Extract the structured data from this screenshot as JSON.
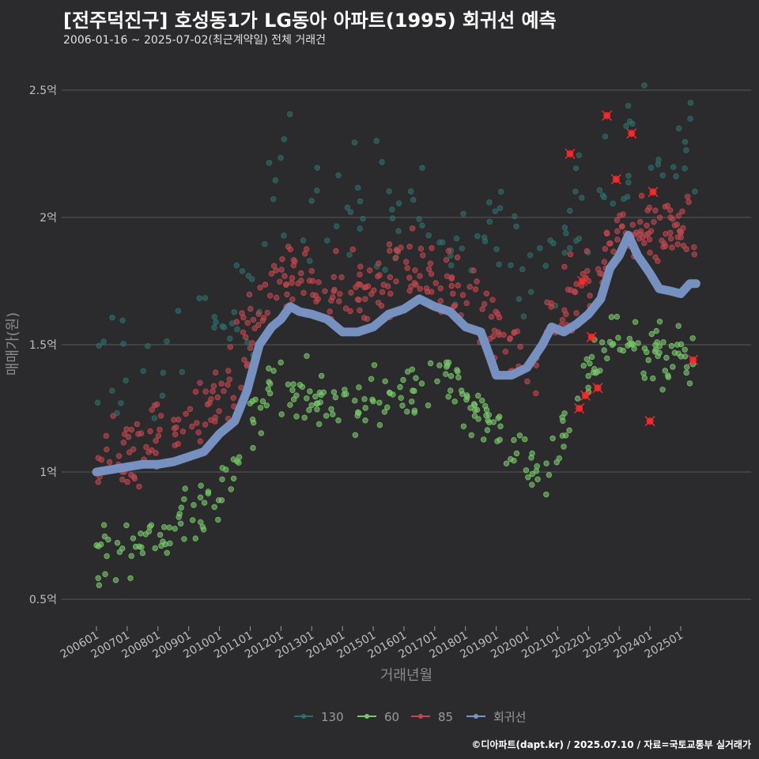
{
  "header": {
    "title": "[전주덕진구] 호성동1가 LG동아 아파트(1995) 회귀선 예측",
    "subtitle": "2006-01-16 ~ 2025-07-02(최근계약일) 전체 거래건"
  },
  "footer": {
    "credit": "©디아파트(dapt.kr) / 2025.07.10 / 자료=국토교통부 실거래가"
  },
  "colors": {
    "background": "#2b2b2e",
    "s130": "#2e6e6c",
    "s60": "#79c86a",
    "s85": "#c0474f",
    "regression": "#7a96c8",
    "highlight": "#ff2a2a",
    "grid": "#5a5a5a"
  },
  "chart_data": {
    "type": "scatter",
    "xlabel": "거래년월",
    "ylabel": "매매가(원)",
    "x_ticks": [
      "200601",
      "200701",
      "200801",
      "200901",
      "201001",
      "201101",
      "201201",
      "201301",
      "201401",
      "201501",
      "201601",
      "201701",
      "201801",
      "201901",
      "202001",
      "202101",
      "202201",
      "202301",
      "202401",
      "202501"
    ],
    "y_ticks": [
      {
        "value": 0.5,
        "label": "0.5억"
      },
      {
        "value": 1.0,
        "label": "1억"
      },
      {
        "value": 1.5,
        "label": "1.5억"
      },
      {
        "value": 2.0,
        "label": "2억"
      },
      {
        "value": 2.5,
        "label": "2.5억"
      }
    ],
    "ylim": [
      0.4,
      2.6
    ],
    "xlim": [
      "2005-10",
      "2025-12"
    ],
    "grid": true,
    "legend_position": "bottom",
    "legend": [
      {
        "name": "130",
        "color": "#2e6e6c"
      },
      {
        "name": "60",
        "color": "#79c86a"
      },
      {
        "name": "85",
        "color": "#c0474f"
      },
      {
        "name": "회귀선",
        "color": "#7a96c8"
      }
    ],
    "series": [
      {
        "name": "130",
        "color": "#2e6e6c",
        "trend": [
          [
            2006.0,
            1.38
          ],
          [
            2008.0,
            1.42
          ],
          [
            2010.0,
            1.5
          ],
          [
            2011.0,
            1.75
          ],
          [
            2012.0,
            2.1
          ],
          [
            2014.0,
            2.0
          ],
          [
            2016.0,
            1.95
          ],
          [
            2018.0,
            1.95
          ],
          [
            2020.0,
            1.85
          ],
          [
            2022.0,
            2.1
          ],
          [
            2023.0,
            2.3
          ],
          [
            2025.5,
            2.25
          ]
        ],
        "spread": 0.14,
        "count": 150
      },
      {
        "name": "60",
        "color": "#79c86a",
        "trend": [
          [
            2006.0,
            0.68
          ],
          [
            2008.0,
            0.75
          ],
          [
            2009.5,
            0.85
          ],
          [
            2010.5,
            1.0
          ],
          [
            2011.0,
            1.2
          ],
          [
            2012.0,
            1.33
          ],
          [
            2014.0,
            1.25
          ],
          [
            2016.0,
            1.32
          ],
          [
            2017.5,
            1.38
          ],
          [
            2019.0,
            1.15
          ],
          [
            2020.0,
            1.0
          ],
          [
            2021.0,
            1.1
          ],
          [
            2022.0,
            1.42
          ],
          [
            2023.0,
            1.55
          ],
          [
            2025.5,
            1.42
          ]
        ],
        "spread": 0.06,
        "count": 300
      },
      {
        "name": "85",
        "color": "#c0474f",
        "trend": [
          [
            2006.0,
            1.02
          ],
          [
            2008.0,
            1.12
          ],
          [
            2010.0,
            1.25
          ],
          [
            2011.0,
            1.55
          ],
          [
            2012.0,
            1.8
          ],
          [
            2014.0,
            1.68
          ],
          [
            2016.0,
            1.8
          ],
          [
            2017.5,
            1.72
          ],
          [
            2019.0,
            1.58
          ],
          [
            2020.0,
            1.4
          ],
          [
            2021.0,
            1.65
          ],
          [
            2022.0,
            1.75
          ],
          [
            2023.0,
            1.95
          ],
          [
            2025.5,
            1.95
          ]
        ],
        "spread": 0.07,
        "count": 380
      }
    ],
    "regression": {
      "name": "회귀선",
      "points": [
        [
          2006.0,
          1.0
        ],
        [
          2006.5,
          1.01
        ],
        [
          2007.0,
          1.02
        ],
        [
          2007.5,
          1.03
        ],
        [
          2008.0,
          1.03
        ],
        [
          2008.5,
          1.04
        ],
        [
          2009.0,
          1.06
        ],
        [
          2009.5,
          1.08
        ],
        [
          2010.0,
          1.15
        ],
        [
          2010.5,
          1.2
        ],
        [
          2010.9,
          1.32
        ],
        [
          2011.3,
          1.5
        ],
        [
          2011.7,
          1.57
        ],
        [
          2012.0,
          1.6
        ],
        [
          2012.3,
          1.65
        ],
        [
          2012.6,
          1.63
        ],
        [
          2013.0,
          1.62
        ],
        [
          2013.5,
          1.6
        ],
        [
          2014.0,
          1.55
        ],
        [
          2014.5,
          1.55
        ],
        [
          2015.0,
          1.57
        ],
        [
          2015.5,
          1.62
        ],
        [
          2016.0,
          1.64
        ],
        [
          2016.5,
          1.68
        ],
        [
          2017.0,
          1.65
        ],
        [
          2017.5,
          1.63
        ],
        [
          2018.0,
          1.57
        ],
        [
          2018.5,
          1.55
        ],
        [
          2018.8,
          1.45
        ],
        [
          2019.0,
          1.38
        ],
        [
          2019.5,
          1.38
        ],
        [
          2020.0,
          1.41
        ],
        [
          2020.5,
          1.5
        ],
        [
          2020.8,
          1.57
        ],
        [
          2021.2,
          1.55
        ],
        [
          2021.6,
          1.58
        ],
        [
          2022.0,
          1.62
        ],
        [
          2022.4,
          1.68
        ],
        [
          2022.7,
          1.8
        ],
        [
          2023.0,
          1.85
        ],
        [
          2023.3,
          1.93
        ],
        [
          2023.6,
          1.85
        ],
        [
          2024.0,
          1.78
        ],
        [
          2024.3,
          1.72
        ],
        [
          2024.7,
          1.71
        ],
        [
          2025.0,
          1.7
        ],
        [
          2025.3,
          1.74
        ],
        [
          2025.5,
          1.74
        ]
      ]
    },
    "highlighted": [
      {
        "x": 2022.6,
        "y": 2.4
      },
      {
        "x": 2023.4,
        "y": 2.33
      },
      {
        "x": 2022.9,
        "y": 2.15
      },
      {
        "x": 2021.4,
        "y": 2.25
      },
      {
        "x": 2024.1,
        "y": 2.1
      },
      {
        "x": 2021.8,
        "y": 1.75
      },
      {
        "x": 2022.1,
        "y": 1.53
      },
      {
        "x": 2021.9,
        "y": 1.3
      },
      {
        "x": 2021.7,
        "y": 1.25
      },
      {
        "x": 2022.3,
        "y": 1.33
      },
      {
        "x": 2025.4,
        "y": 1.44
      },
      {
        "x": 2024.0,
        "y": 1.2
      }
    ]
  }
}
